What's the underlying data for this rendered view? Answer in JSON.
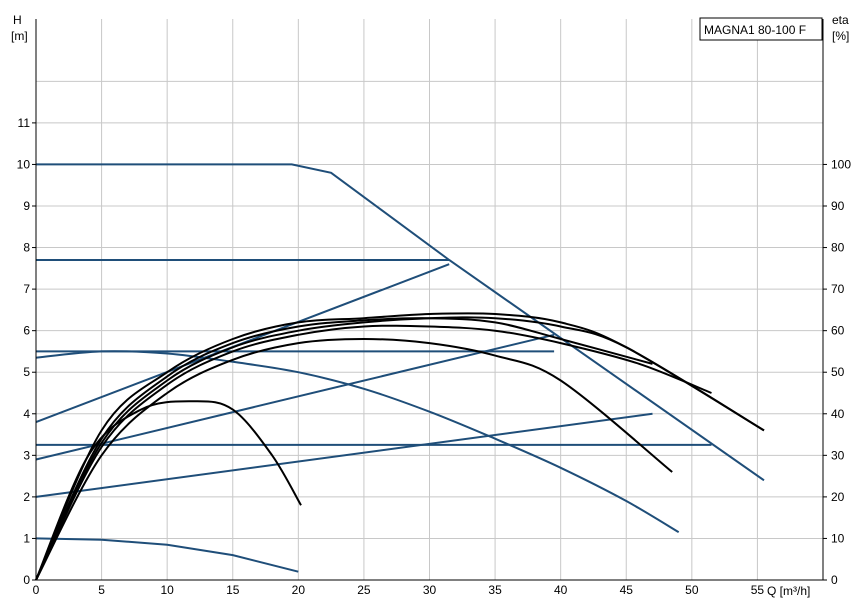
{
  "chart_data": {
    "type": "line",
    "title": "MAGNA1 80-100 F",
    "xlabel": "Q [m³/h]",
    "ylabel_left": "H",
    "ylabel_left_unit": "[m]",
    "ylabel_right": "eta",
    "ylabel_right_unit": "[%]",
    "xlim": [
      0,
      60
    ],
    "ylim_left": [
      0,
      13.5
    ],
    "ylim_right": [
      0,
      135
    ],
    "x_ticks": [
      0,
      5,
      10,
      15,
      20,
      25,
      30,
      35,
      40,
      45,
      50,
      55
    ],
    "y_left_ticks": [
      0,
      1,
      2,
      3,
      4,
      5,
      6,
      7,
      8,
      9,
      10,
      11
    ],
    "y_right_ticks": [
      0,
      10,
      20,
      30,
      40,
      50,
      60,
      70,
      80,
      90,
      100
    ],
    "grid": true,
    "colors": {
      "head": "#1f4e79",
      "efficiency": "#000000",
      "grid": "#c8c8c8"
    },
    "head_series": [
      {
        "x": [
          0,
          19.5,
          22.5,
          31.5,
          55.5
        ],
        "y": [
          10,
          10,
          9.8,
          7.7,
          2.4
        ]
      },
      {
        "x": [
          0,
          31.5
        ],
        "y": [
          7.7,
          7.7
        ]
      },
      {
        "x": [
          0,
          31.5
        ],
        "y": [
          3.8,
          7.6
        ]
      },
      {
        "x": [
          0,
          39.5
        ],
        "y": [
          5.5,
          5.5
        ]
      },
      {
        "x": [
          0,
          39.5
        ],
        "y": [
          2.9,
          5.9
        ]
      },
      {
        "x": [
          0,
          51.5
        ],
        "y": [
          3.25,
          3.25
        ]
      },
      {
        "x": [
          0,
          47.0
        ],
        "y": [
          2.0,
          4.0
        ]
      },
      {
        "x": [
          0,
          5,
          10,
          15,
          20,
          25,
          30,
          35,
          40,
          45,
          49
        ],
        "y": [
          5.35,
          5.5,
          5.45,
          5.25,
          5.0,
          4.6,
          4.05,
          3.4,
          2.7,
          1.9,
          1.15
        ]
      },
      {
        "x": [
          0,
          5,
          10,
          15,
          20
        ],
        "y": [
          1.0,
          0.97,
          0.85,
          0.6,
          0.2
        ]
      }
    ],
    "efficiency_series": [
      {
        "x": [
          0,
          4,
          8,
          12,
          15,
          18,
          20.2
        ],
        "y": [
          0,
          30,
          41,
          43,
          41,
          30,
          18
        ]
      },
      {
        "x": [
          0,
          5,
          10,
          15,
          20,
          25,
          30,
          35,
          40,
          45,
          55.5
        ],
        "y": [
          0,
          33,
          48,
          56,
          60,
          62,
          63,
          63,
          61,
          56,
          36
        ]
      },
      {
        "x": [
          0,
          5,
          10,
          15,
          20,
          25,
          30,
          35,
          40,
          47
        ],
        "y": [
          0,
          34,
          49,
          57,
          61,
          62.5,
          63,
          62,
          58,
          52
        ]
      },
      {
        "x": [
          0,
          5,
          10,
          15,
          20,
          25,
          30,
          35,
          40,
          46,
          51.5
        ],
        "y": [
          0,
          32,
          47,
          55,
          59,
          61,
          61,
          60,
          57,
          52,
          45
        ]
      },
      {
        "x": [
          0,
          5,
          10,
          15,
          20,
          25,
          30,
          35,
          40,
          48.5
        ],
        "y": [
          0,
          30,
          45,
          53,
          57,
          58,
          57,
          54,
          48,
          26
        ]
      },
      {
        "x": [
          0,
          5,
          10,
          15,
          20,
          25,
          30,
          35,
          40,
          45,
          55.5
        ],
        "y": [
          0,
          36,
          50,
          58,
          62,
          63,
          64,
          64,
          62,
          56,
          36
        ]
      }
    ]
  }
}
